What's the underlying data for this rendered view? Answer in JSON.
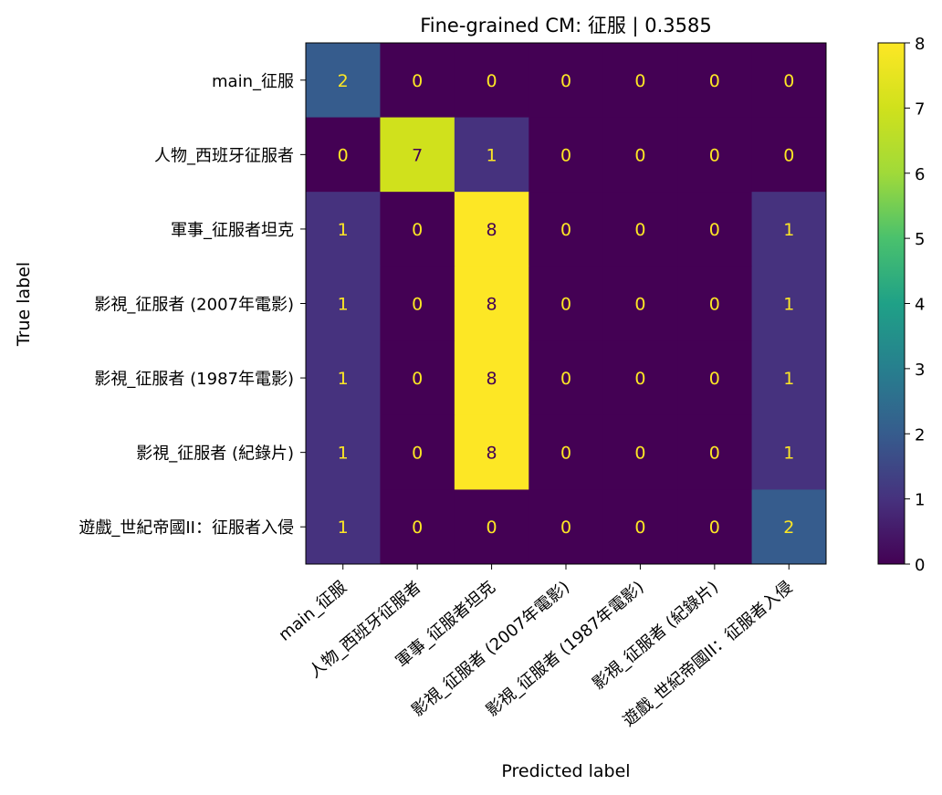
{
  "chart_data": {
    "type": "heatmap",
    "title": "Fine-grained CM: 征服 | 0.3585",
    "xlabel": "Predicted label",
    "ylabel": "True label",
    "categories": [
      "main_征服",
      "人物_西班牙征服者",
      "軍事_征服者坦克",
      "影視_征服者 (2007年電影)",
      "影視_征服者 (1987年電影)",
      "影視_征服者 (紀錄片)",
      "遊戲_世紀帝國II：征服者入侵"
    ],
    "matrix": [
      [
        2,
        0,
        0,
        0,
        0,
        0,
        0
      ],
      [
        0,
        7,
        1,
        0,
        0,
        0,
        0
      ],
      [
        1,
        0,
        8,
        0,
        0,
        0,
        1
      ],
      [
        1,
        0,
        8,
        0,
        0,
        0,
        1
      ],
      [
        1,
        0,
        8,
        0,
        0,
        0,
        1
      ],
      [
        1,
        0,
        8,
        0,
        0,
        0,
        1
      ],
      [
        1,
        0,
        0,
        0,
        0,
        0,
        2
      ]
    ],
    "colormap": "viridis",
    "colorbar": {
      "vmin": 0,
      "vmax": 8,
      "ticks": [
        0,
        1,
        2,
        3,
        4,
        5,
        6,
        7,
        8
      ]
    },
    "colors": {
      "low": "#440154",
      "high": "#fde725",
      "text_on_low": "#fde725",
      "text_on_high": "#440154"
    }
  }
}
